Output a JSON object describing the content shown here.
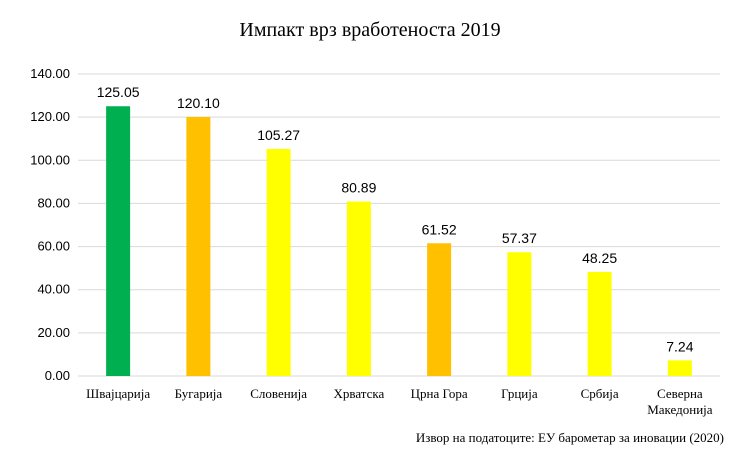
{
  "chart_data": {
    "type": "bar",
    "title": "Импакт врз вработеноста 2019",
    "categories": [
      [
        "Швајцарија"
      ],
      [
        "Бугарија"
      ],
      [
        "Словенија"
      ],
      [
        "Хрватска"
      ],
      [
        "Црна Гора"
      ],
      [
        "Грција"
      ],
      [
        "Србија"
      ],
      [
        "Северна",
        "Македонија"
      ]
    ],
    "values": [
      125.05,
      120.1,
      105.27,
      80.89,
      61.52,
      57.37,
      48.25,
      7.24
    ],
    "value_labels": [
      "125.05",
      "120.10",
      "105.27",
      "80.89",
      "61.52",
      "57.37",
      "48.25",
      "7.24"
    ],
    "bar_colors": [
      "#00b050",
      "#ffc000",
      "#ffff00",
      "#ffff00",
      "#ffc000",
      "#ffff00",
      "#ffff00",
      "#ffff00"
    ],
    "ylim": [
      0,
      140
    ],
    "yticks": [
      "0.00",
      "20.00",
      "40.00",
      "60.00",
      "80.00",
      "100.00",
      "120.00",
      "140.00"
    ],
    "grid": true,
    "legend": "none"
  },
  "source_note": "Извор на податоците:  ЕУ барометар за иновации  (2020)"
}
